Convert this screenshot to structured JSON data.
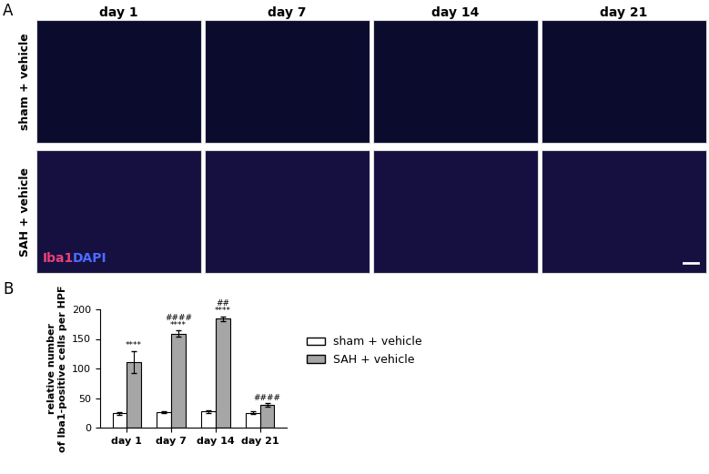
{
  "panel_a": {
    "label": "A",
    "columns": [
      "day 1",
      "day 7",
      "day 14",
      "day 21"
    ],
    "rows": [
      "sham + vehicle",
      "SAH + vehicle"
    ],
    "stain_labels": [
      {
        "text": "Iba1",
        "color": "#e8407a"
      },
      {
        "text": "DAPI",
        "color": "#4a6cff"
      }
    ]
  },
  "chart_data": {
    "type": "bar",
    "panel_label": "B",
    "y_label": "relative number\nof Iba1-positive cells per HPF",
    "categories": [
      "day 1",
      "day 7",
      "day 14",
      "day 21"
    ],
    "series": [
      {
        "name": "sham + vehicle",
        "color": "#ffffff",
        "values": [
          24,
          26,
          27,
          25
        ],
        "errors": [
          2,
          2,
          2,
          2
        ]
      },
      {
        "name": "SAH + vehicle",
        "color": "#a6a6a6",
        "values": [
          111,
          159,
          184,
          38
        ],
        "errors": [
          19,
          5,
          4,
          3
        ],
        "annotations": [
          [
            "****"
          ],
          [
            "####",
            "****"
          ],
          [
            "##",
            "****"
          ],
          [
            "####"
          ]
        ]
      }
    ],
    "ylim": [
      0,
      200
    ],
    "yticks": [
      0,
      50,
      100,
      150,
      200
    ],
    "grid": false,
    "legend": "center left"
  }
}
